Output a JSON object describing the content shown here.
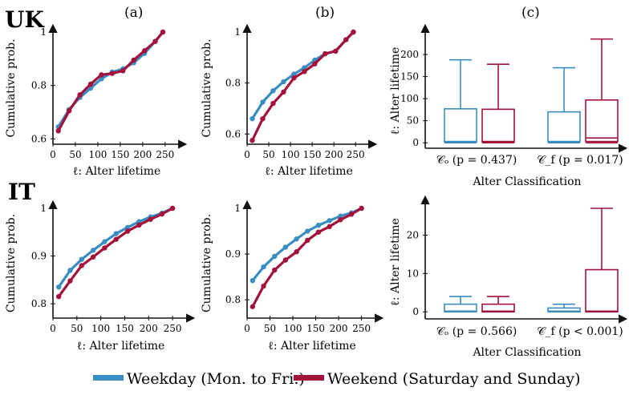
{
  "colors": {
    "weekday": "#3a8dc0",
    "weekend": "#a3123a",
    "axis": "#111111"
  },
  "row_labels": [
    "UK",
    "IT"
  ],
  "panel_labels": [
    "(a)",
    "(b)",
    "(c)"
  ],
  "legend": [
    {
      "key": "weekday",
      "label": "Weekday (Mon. to Fri.)"
    },
    {
      "key": "weekend",
      "label": "Weekend (Saturday and Sunday)"
    }
  ],
  "chart_data": [
    {
      "id": "uk-a",
      "type": "line",
      "xlabel": "ℓ: Alter lifetime",
      "ylabel": "Cumulative prob.",
      "xlim": [
        0,
        270
      ],
      "ylim": [
        0.58,
        1.0
      ],
      "xticks": [
        0,
        50,
        100,
        150,
        200,
        250
      ],
      "yticks": [
        0.6,
        0.8,
        1
      ],
      "series": [
        {
          "key": "weekday",
          "x": [
            12,
            36,
            60,
            84,
            108,
            132,
            156,
            180,
            204,
            228,
            245
          ],
          "y": [
            0.645,
            0.71,
            0.755,
            0.79,
            0.825,
            0.85,
            0.862,
            0.885,
            0.92,
            0.965,
            1.0
          ]
        },
        {
          "key": "weekend",
          "x": [
            12,
            36,
            60,
            84,
            108,
            132,
            156,
            180,
            204,
            228,
            245
          ],
          "y": [
            0.63,
            0.705,
            0.765,
            0.805,
            0.84,
            0.845,
            0.855,
            0.895,
            0.93,
            0.965,
            1.0
          ]
        }
      ]
    },
    {
      "id": "uk-b",
      "type": "line",
      "xlabel": "ℓ: Alter lifetime",
      "ylabel": "Cumulative prob.",
      "xlim": [
        0,
        270
      ],
      "ylim": [
        0.56,
        1.0
      ],
      "xticks": [
        0,
        50,
        100,
        150,
        200,
        250
      ],
      "yticks": [
        0.6,
        0.8,
        1
      ],
      "series": [
        {
          "key": "weekday",
          "x": [
            12,
            36,
            60,
            84,
            108,
            132,
            156,
            180,
            204,
            228,
            245
          ],
          "y": [
            0.66,
            0.725,
            0.77,
            0.805,
            0.835,
            0.86,
            0.89,
            0.915,
            0.925,
            0.97,
            1.0
          ]
        },
        {
          "key": "weekend",
          "x": [
            12,
            36,
            60,
            84,
            108,
            132,
            156,
            180,
            204,
            228,
            245
          ],
          "y": [
            0.575,
            0.66,
            0.72,
            0.765,
            0.82,
            0.845,
            0.875,
            0.915,
            0.925,
            0.97,
            1.0
          ]
        }
      ]
    },
    {
      "id": "uk-c",
      "type": "box",
      "xlabel": "Alter Classification",
      "ylabel": "ℓ: Alter lifetime",
      "ylim": [
        -5,
        240
      ],
      "yticks": [
        0,
        50,
        100,
        150,
        200
      ],
      "categories": [
        "𝒞ₒ (p = 0.437)",
        "𝒞_f (p = 0.017)"
      ],
      "boxes": [
        {
          "category": 0,
          "key": "weekday",
          "min": 0,
          "q1": 2,
          "median": 3,
          "q3": 77,
          "max": 188
        },
        {
          "category": 0,
          "key": "weekend",
          "min": 0,
          "q1": 2,
          "median": 3,
          "q3": 76,
          "max": 178
        },
        {
          "category": 1,
          "key": "weekday",
          "min": 0,
          "q1": 2,
          "median": 3,
          "q3": 70,
          "max": 170
        },
        {
          "category": 1,
          "key": "weekend",
          "min": 0,
          "q1": 3,
          "median": 11,
          "q3": 97,
          "max": 235
        }
      ]
    },
    {
      "id": "it-a",
      "type": "line",
      "xlabel": "ℓ: Alter lifetime",
      "ylabel": "Cumulative prob.",
      "xlim": [
        0,
        270
      ],
      "ylim": [
        0.77,
        1.0
      ],
      "xticks": [
        0,
        50,
        100,
        150,
        200,
        250
      ],
      "yticks": [
        0.8,
        0.9,
        1
      ],
      "series": [
        {
          "key": "weekday",
          "x": [
            12,
            36,
            60,
            84,
            108,
            132,
            156,
            180,
            204,
            228,
            250
          ],
          "y": [
            0.835,
            0.87,
            0.893,
            0.912,
            0.93,
            0.947,
            0.96,
            0.972,
            0.982,
            0.99,
            1.0
          ]
        },
        {
          "key": "weekend",
          "x": [
            12,
            36,
            60,
            84,
            108,
            132,
            156,
            180,
            204,
            228,
            250
          ],
          "y": [
            0.815,
            0.848,
            0.88,
            0.898,
            0.917,
            0.935,
            0.952,
            0.965,
            0.977,
            0.988,
            1.0
          ]
        }
      ]
    },
    {
      "id": "it-b",
      "type": "line",
      "xlabel": "ℓ: Alter lifetime",
      "ylabel": "Cumulative prob.",
      "xlim": [
        0,
        270
      ],
      "ylim": [
        0.76,
        1.0
      ],
      "xticks": [
        0,
        50,
        100,
        150,
        200,
        250
      ],
      "yticks": [
        0.8,
        0.9,
        1
      ],
      "series": [
        {
          "key": "weekday",
          "x": [
            12,
            36,
            60,
            84,
            108,
            132,
            156,
            180,
            204,
            228,
            250
          ],
          "y": [
            0.842,
            0.872,
            0.895,
            0.915,
            0.933,
            0.95,
            0.963,
            0.973,
            0.983,
            0.99,
            1.0
          ]
        },
        {
          "key": "weekend",
          "x": [
            12,
            36,
            60,
            84,
            108,
            132,
            156,
            180,
            204,
            228,
            250
          ],
          "y": [
            0.785,
            0.83,
            0.865,
            0.887,
            0.905,
            0.93,
            0.948,
            0.96,
            0.975,
            0.987,
            1.0
          ]
        }
      ]
    },
    {
      "id": "it-c",
      "type": "box",
      "xlabel": "Alter Classification",
      "ylabel": "ℓ: Alter lifetime",
      "ylim": [
        -1,
        27
      ],
      "yticks": [
        0,
        10,
        20
      ],
      "categories": [
        "𝒞ₒ (p = 0.566)",
        "𝒞_f (p < 0.001)"
      ],
      "boxes": [
        {
          "category": 0,
          "key": "weekday",
          "min": 0,
          "q1": 0,
          "median": 0.2,
          "q3": 2,
          "max": 4
        },
        {
          "category": 0,
          "key": "weekend",
          "min": 0,
          "q1": 0,
          "median": 0.2,
          "q3": 2,
          "max": 4
        },
        {
          "category": 1,
          "key": "weekday",
          "min": 0,
          "q1": 0,
          "median": 0.2,
          "q3": 1,
          "max": 2
        },
        {
          "category": 1,
          "key": "weekend",
          "min": 0,
          "q1": 0,
          "median": 0.2,
          "q3": 11,
          "max": 27
        }
      ]
    }
  ]
}
